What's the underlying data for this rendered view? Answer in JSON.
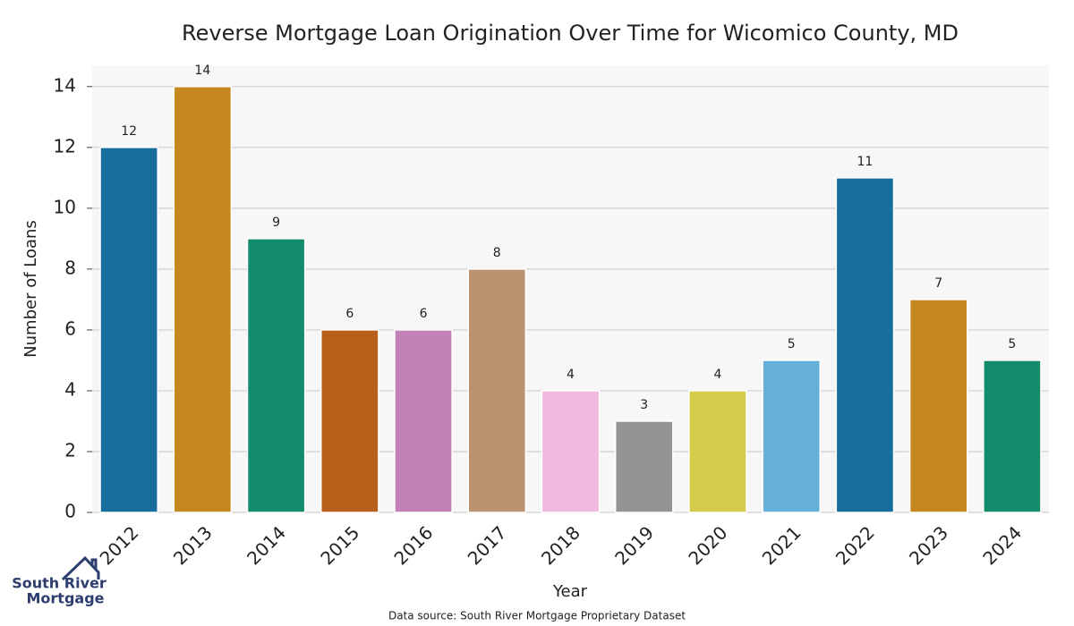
{
  "chart_data": {
    "type": "bar",
    "title": "Reverse Mortgage Loan Origination Over Time for Wicomico County, MD",
    "x_label": "Year",
    "y_label": "Number of Loans",
    "categories": [
      "2012",
      "2013",
      "2014",
      "2015",
      "2016",
      "2017",
      "2018",
      "2019",
      "2020",
      "2021",
      "2022",
      "2023",
      "2024"
    ],
    "values": [
      12,
      14,
      9,
      6,
      6,
      8,
      4,
      3,
      4,
      5,
      11,
      7,
      5
    ],
    "colors": [
      "#176d9c",
      "#c4881e",
      "#148c6b",
      "#b85f1c",
      "#c180b6",
      "#bc9370",
      "#f1b8e0",
      "#949494",
      "#d6cb4a",
      "#66afd9",
      "#176d9c",
      "#c4881e",
      "#148c6b"
    ],
    "ylim": [
      0,
      14.7
    ],
    "yticks": [
      0,
      2,
      4,
      6,
      8,
      10,
      12,
      14
    ],
    "grid": true,
    "source": "Data source: South River Mortgage Proprietary Dataset"
  },
  "logo": [
    "South River",
    "Mortgage"
  ]
}
